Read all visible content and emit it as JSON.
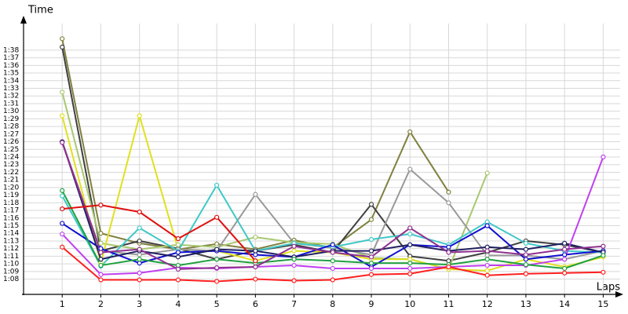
{
  "chart_data": {
    "type": "line",
    "x_label": "Laps",
    "y_label": "Time",
    "x": [
      1,
      2,
      3,
      4,
      5,
      6,
      7,
      8,
      9,
      10,
      11,
      12,
      13,
      14,
      15
    ],
    "xlim": [
      0,
      15.5
    ],
    "xticks": [
      1,
      2,
      3,
      4,
      5,
      6,
      7,
      8,
      9,
      10,
      11,
      12,
      13,
      14,
      15
    ],
    "ylim": [
      66,
      102
    ],
    "yticks": [
      {
        "value": 68,
        "label": "1:08"
      },
      {
        "value": 69,
        "label": "1:09"
      },
      {
        "value": 70,
        "label": "1:10"
      },
      {
        "value": 71,
        "label": "1:11"
      },
      {
        "value": 72,
        "label": "1:12"
      },
      {
        "value": 73,
        "label": "1:13"
      },
      {
        "value": 74,
        "label": "1:14"
      },
      {
        "value": 75,
        "label": "1:15"
      },
      {
        "value": 76,
        "label": "1:16"
      },
      {
        "value": 77,
        "label": "1:17"
      },
      {
        "value": 78,
        "label": "1:18"
      },
      {
        "value": 79,
        "label": "1:19"
      },
      {
        "value": 80,
        "label": "1:20"
      },
      {
        "value": 81,
        "label": "1:21"
      },
      {
        "value": 82,
        "label": "1:22"
      },
      {
        "value": 83,
        "label": "1:23"
      },
      {
        "value": 84,
        "label": "1:24"
      },
      {
        "value": 85,
        "label": "1:25"
      },
      {
        "value": 86,
        "label": "1:26"
      },
      {
        "value": 87,
        "label": "1:27"
      },
      {
        "value": 88,
        "label": "1:28"
      },
      {
        "value": 89,
        "label": "1:29"
      },
      {
        "value": 90,
        "label": "1:30"
      },
      {
        "value": 91,
        "label": "1:31"
      },
      {
        "value": 92,
        "label": "1:32"
      },
      {
        "value": 93,
        "label": "1:33"
      },
      {
        "value": 94,
        "label": "1:34"
      },
      {
        "value": 95,
        "label": "1:35"
      },
      {
        "value": 96,
        "label": "1:36"
      },
      {
        "value": 97,
        "label": "1:37"
      },
      {
        "value": 98,
        "label": "1:38"
      }
    ],
    "grid": true,
    "series": [
      {
        "color": "#808040",
        "values": [
          99.5,
          74.0,
          72.7,
          71.9,
          72.6,
          71.9,
          73.1,
          72.1,
          75.8,
          87.3,
          79.4,
          null,
          null,
          null,
          null
        ]
      },
      {
        "color": "#404040",
        "values": [
          98.4,
          71.7,
          73.0,
          72.0,
          70.6,
          71.7,
          72.5,
          71.5,
          77.8,
          71.0,
          70.4,
          71.5,
          73.0,
          72.5,
          71.5
        ]
      },
      {
        "color": "#a8c870",
        "values": [
          92.5,
          72.7,
          71.9,
          72.5,
          72.2,
          73.5,
          72.8,
          72.6,
          70.8,
          70.6,
          69.3,
          81.9,
          null,
          null,
          null
        ]
      },
      {
        "color": "#e0e020",
        "values": [
          89.4,
          70.1,
          89.4,
          71.9,
          71.7,
          70.4,
          71.7,
          71.5,
          70.6,
          70.6,
          69.3,
          69.1,
          70.6,
          69.6,
          70.9
        ]
      },
      {
        "color": "#999999",
        "values": [
          86.0,
          71.7,
          71.2,
          71.9,
          71.7,
          79.1,
          72.7,
          72.1,
          71.2,
          82.4,
          78.0,
          71.1,
          71.1,
          70.6,
          71.7
        ]
      },
      {
        "color": "#40c8c8",
        "values": [
          78.9,
          69.7,
          74.7,
          71.7,
          80.3,
          71.7,
          72.7,
          72.2,
          73.2,
          73.9,
          72.5,
          75.5,
          72.7,
          71.7,
          71.5
        ]
      },
      {
        "color": "#1010d0",
        "values": [
          75.3,
          72.0,
          70.1,
          71.5,
          71.7,
          71.2,
          70.9,
          72.5,
          69.6,
          72.5,
          72.2,
          75.0,
          70.6,
          71.2,
          71.7
        ]
      },
      {
        "color": "#202060",
        "values": [
          86.0,
          70.6,
          71.7,
          70.9,
          71.9,
          71.7,
          70.9,
          71.7,
          71.7,
          72.5,
          71.7,
          72.2,
          71.9,
          72.7,
          71.5
        ]
      },
      {
        "color": "#c040f0",
        "values": [
          73.9,
          68.6,
          68.8,
          69.5,
          69.4,
          69.6,
          69.8,
          69.4,
          69.4,
          69.4,
          69.6,
          69.8,
          69.8,
          70.6,
          84.0
        ]
      },
      {
        "color": "#20a040",
        "values": [
          79.6,
          69.8,
          70.6,
          69.8,
          70.6,
          70.1,
          70.6,
          70.4,
          70.1,
          70.1,
          69.9,
          70.6,
          69.9,
          69.4,
          71.1
        ]
      },
      {
        "color": "#903090",
        "values": [
          85.9,
          71.5,
          71.9,
          69.3,
          69.5,
          69.6,
          72.3,
          71.5,
          70.9,
          74.7,
          71.5,
          71.7,
          71.2,
          71.9,
          72.3
        ]
      },
      {
        "color": "#ff2020",
        "values": [
          72.2,
          67.9,
          67.9,
          67.9,
          67.7,
          68.0,
          67.8,
          67.9,
          68.6,
          68.7,
          69.6,
          68.5,
          68.7,
          68.8,
          68.9
        ]
      },
      {
        "color": "#e01010",
        "values": [
          77.2,
          77.7,
          76.8,
          73.3,
          76.1,
          70.4,
          null,
          null,
          null,
          null,
          null,
          null,
          null,
          null,
          null
        ]
      }
    ]
  }
}
